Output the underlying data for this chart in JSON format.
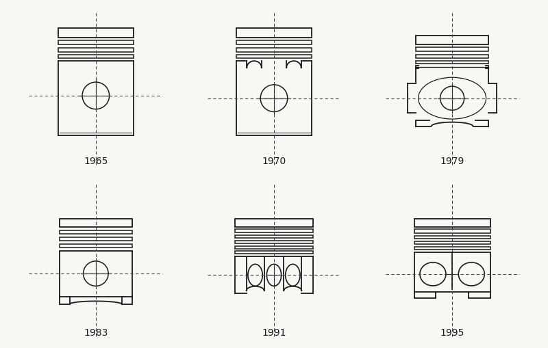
{
  "years": [
    "1965",
    "1970",
    "1979",
    "1983",
    "1991",
    "1995"
  ],
  "background_color": "#f8f7f3",
  "line_color": "#1a1a1a",
  "dash_color": "#444444",
  "figsize": [
    8.0,
    5.1
  ],
  "dpi": 100
}
